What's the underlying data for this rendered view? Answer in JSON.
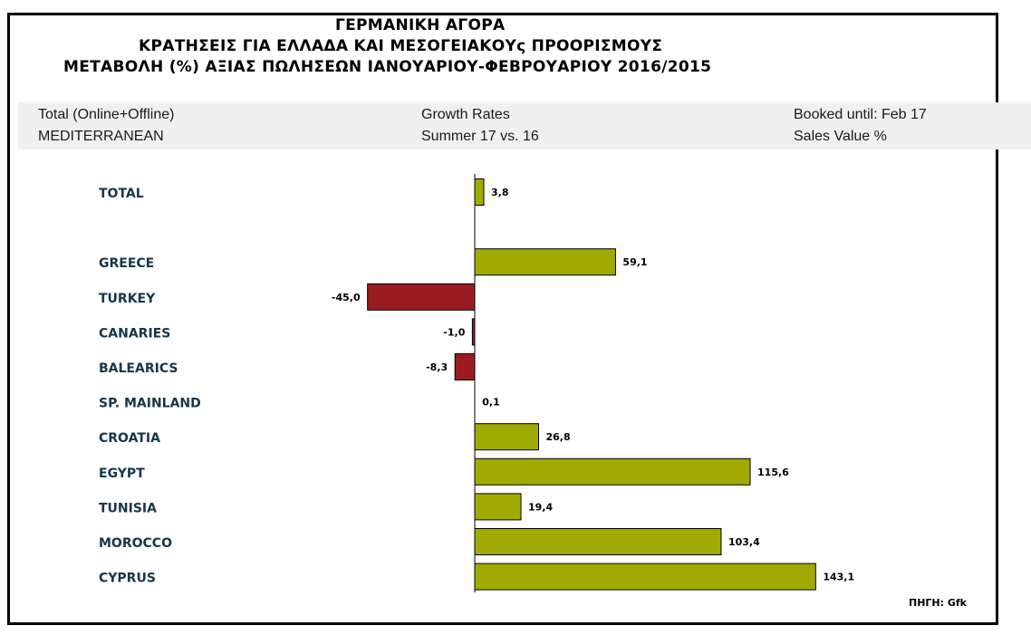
{
  "header": {
    "title_line1": "ΓΕΡΜΑΝΙΚΗ ΑΓΟΡΑ",
    "title_line2": "ΚΡΑΤΗΣΕΙΣ ΓΙΑ ΕΛΛΑΔΑ ΚΑΙ ΜΕΣΟΓΕΙΑΚΟΥς ΠΡΟΟΡΙΣΜΟΥΣ",
    "title_line3": "ΜΕΤΑΒΟΛΗ (%) ΑΞΙΑΣ ΠΩΛΗΣΕΩΝ ΙΑΝΟΥΑΡΙΟΥ-ΦΕΒΡΟΥΑΡΙΟΥ 2016/2015"
  },
  "info_band": {
    "left_line1": "Total (Online+Offline)",
    "left_line2": "MEDITERRANEAN",
    "middle_line1": "Growth Rates",
    "middle_line2": "Summer 17 vs. 16",
    "right_line1": "Booked until: Feb 17",
    "right_line2": "Sales Value %"
  },
  "colors": {
    "positive": "#a0aa00",
    "negative": "#9b1c20",
    "label_color": "#17364a"
  },
  "chart_data": {
    "type": "bar",
    "orientation": "horizontal",
    "categories": [
      "TOTAL",
      "GREECE",
      "TURKEY",
      "CANARIES",
      "BALEARICS",
      "SP. MAINLAND",
      "CROATIA",
      "EGYPT",
      "TUNISIA",
      "MOROCCO",
      "CYPRUS"
    ],
    "values": [
      3.8,
      59.1,
      -45.0,
      -1.0,
      -8.3,
      0.1,
      26.8,
      115.6,
      19.4,
      103.4,
      143.1
    ],
    "value_labels": [
      "3,8",
      "59,1",
      "-45,0",
      "-1,0",
      "-8,3",
      "0,1",
      "26,8",
      "115,6",
      "19,4",
      "103,4",
      "143,1"
    ],
    "gap_after_first": true,
    "xlim": [
      -200,
      160
    ],
    "grid": false,
    "legend": "none"
  },
  "source": "ΠΗΓΗ: Gfk"
}
